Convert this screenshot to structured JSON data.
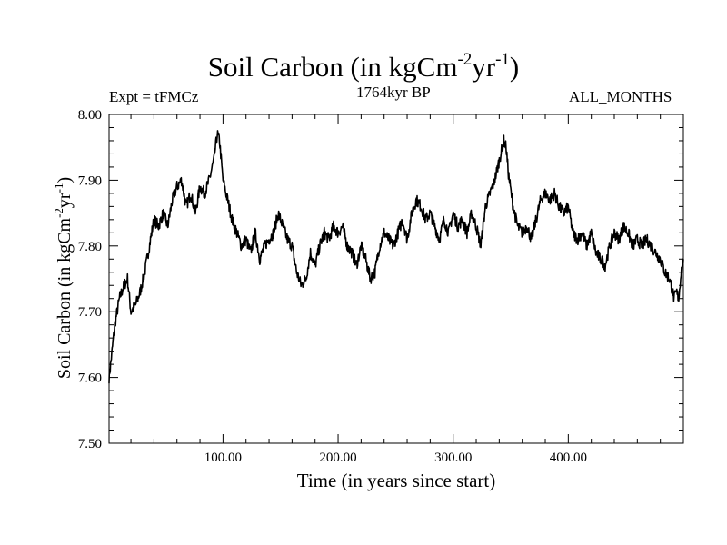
{
  "header": {
    "title_main": "Soil Carbon (in kgCm",
    "title_exp1": "-2",
    "title_mid": "yr",
    "title_exp2": "-1",
    "title_end": ")",
    "expt": "Expt = tFMCz",
    "subtitle": "1764kyr BP",
    "months": "ALL_MONTHS"
  },
  "chart_data": {
    "type": "line",
    "xlabel": "Time (in years since start)",
    "ylabel": {
      "main": "Soil Carbon (in kgCm",
      "exp1": "-2",
      "mid": "yr",
      "exp2": "-1",
      "end": ")"
    },
    "xlim": [
      1,
      500
    ],
    "ylim": [
      7.5,
      8.0
    ],
    "x_ticks": [
      100,
      200,
      300,
      400
    ],
    "x_tick_labels": [
      "100.00",
      "200.00",
      "300.00",
      "400.00"
    ],
    "y_ticks": [
      7.5,
      7.6,
      7.7,
      7.8,
      7.9,
      8.0
    ],
    "y_tick_labels": [
      "7.50",
      "7.60",
      "7.70",
      "7.80",
      "7.90",
      "8.00"
    ],
    "line_color": "#000000",
    "series": [
      {
        "x": [
          1,
          3,
          6,
          10,
          14,
          17,
          20,
          24,
          28,
          32,
          36,
          40,
          44,
          48,
          52,
          56,
          60,
          64,
          68,
          72,
          76,
          80,
          84,
          88,
          92,
          95,
          97,
          100,
          104,
          108,
          112,
          116,
          120,
          124,
          128,
          132,
          136,
          140,
          144,
          148,
          152,
          156,
          160,
          164,
          168,
          172,
          176,
          180,
          184,
          188,
          192,
          196,
          200,
          204,
          208,
          212,
          216,
          220,
          224,
          228,
          232,
          236,
          240,
          244,
          248,
          252,
          256,
          260,
          264,
          268,
          272,
          276,
          280,
          284,
          288,
          292,
          296,
          300,
          304,
          308,
          312,
          316,
          320,
          324,
          328,
          332,
          336,
          340,
          344,
          346,
          348,
          352,
          356,
          360,
          364,
          368,
          372,
          376,
          380,
          384,
          388,
          392,
          396,
          400,
          404,
          408,
          412,
          416,
          420,
          424,
          428,
          432,
          436,
          440,
          444,
          448,
          452,
          456,
          460,
          464,
          468,
          472,
          476,
          480,
          484,
          488,
          492,
          494,
          496,
          498,
          500
        ],
        "y": [
          7.6,
          7.63,
          7.68,
          7.72,
          7.74,
          7.75,
          7.7,
          7.71,
          7.73,
          7.76,
          7.8,
          7.84,
          7.83,
          7.85,
          7.83,
          7.87,
          7.89,
          7.9,
          7.86,
          7.88,
          7.85,
          7.89,
          7.88,
          7.9,
          7.93,
          7.97,
          7.96,
          7.9,
          7.87,
          7.84,
          7.82,
          7.8,
          7.81,
          7.79,
          7.82,
          7.78,
          7.8,
          7.81,
          7.82,
          7.85,
          7.83,
          7.81,
          7.8,
          7.76,
          7.74,
          7.75,
          7.79,
          7.77,
          7.8,
          7.82,
          7.81,
          7.83,
          7.82,
          7.83,
          7.8,
          7.79,
          7.77,
          7.8,
          7.78,
          7.75,
          7.76,
          7.8,
          7.82,
          7.81,
          7.8,
          7.82,
          7.84,
          7.81,
          7.85,
          7.87,
          7.86,
          7.84,
          7.85,
          7.83,
          7.81,
          7.84,
          7.82,
          7.85,
          7.83,
          7.84,
          7.82,
          7.85,
          7.83,
          7.8,
          7.86,
          7.88,
          7.9,
          7.93,
          7.96,
          7.95,
          7.91,
          7.86,
          7.83,
          7.82,
          7.83,
          7.81,
          7.84,
          7.87,
          7.88,
          7.87,
          7.88,
          7.86,
          7.85,
          7.86,
          7.82,
          7.81,
          7.82,
          7.8,
          7.82,
          7.79,
          7.78,
          7.77,
          7.8,
          7.82,
          7.81,
          7.83,
          7.82,
          7.8,
          7.81,
          7.8,
          7.81,
          7.8,
          7.79,
          7.78,
          7.76,
          7.75,
          7.72,
          7.73,
          7.72,
          7.76,
          7.78
        ]
      }
    ]
  }
}
